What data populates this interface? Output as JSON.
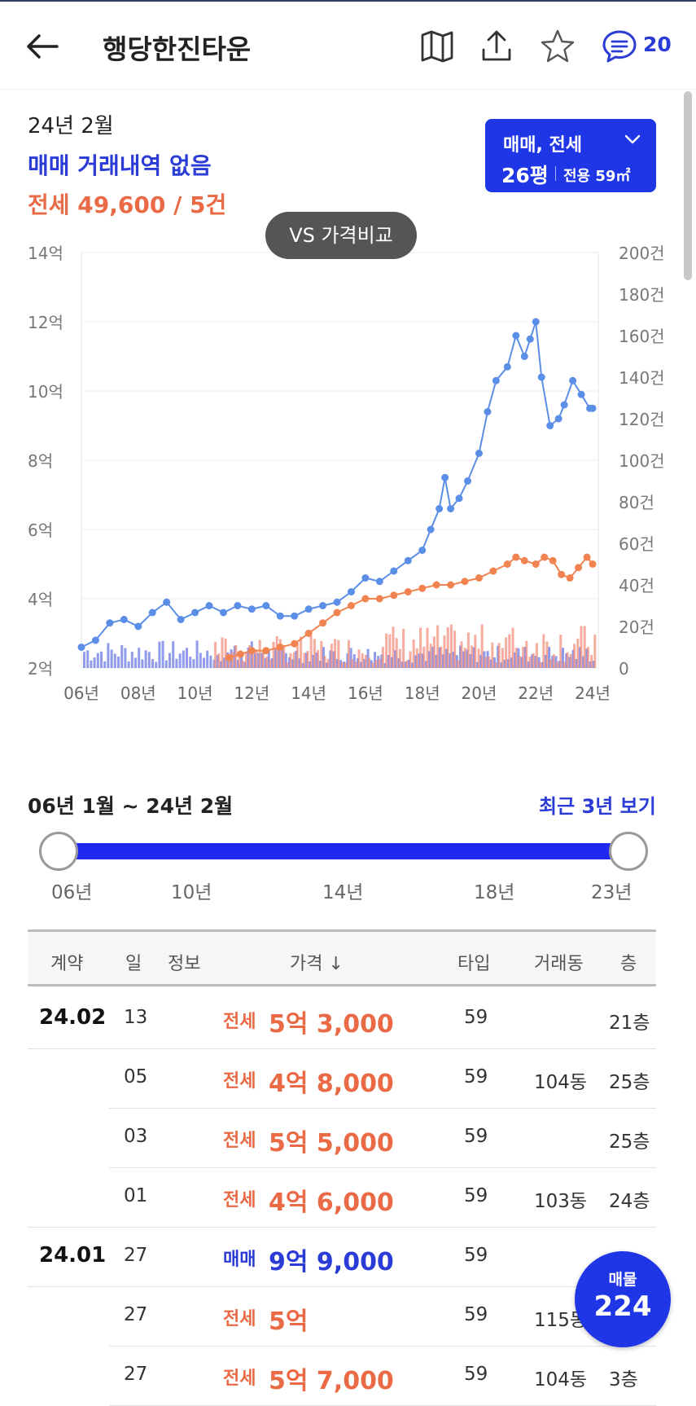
{
  "header": {
    "title": "행당한진타운",
    "comment_count": "20"
  },
  "summary": {
    "date": "24년 2월",
    "maemae": "매매 거래내역 없음",
    "jeonse": "전세 49,600 / 5건"
  },
  "type_selector": {
    "deal_types": "매매, 전세",
    "pyeong": "26평",
    "area": "전용 59㎡"
  },
  "compare_button": "VS 가격비교",
  "chart_data": {
    "type": "line",
    "x_ticks": [
      "06년",
      "08년",
      "10년",
      "12년",
      "14년",
      "16년",
      "18년",
      "20년",
      "22년",
      "24년"
    ],
    "y_left_ticks": [
      "14억",
      "12억",
      "10억",
      "8억",
      "6억",
      "4억",
      "2억"
    ],
    "y_right_ticks": [
      "200건",
      "180건",
      "160건",
      "140건",
      "120건",
      "100건",
      "80건",
      "60건",
      "40건",
      "20건",
      "0"
    ],
    "ylim_left": [
      2,
      14
    ],
    "ylim_right": [
      0,
      200
    ],
    "xlim": [
      2006,
      2024.2
    ],
    "grid": true,
    "series": [
      {
        "color": "#5b8ee6",
        "x": [
          2006.0,
          2006.5,
          2007.0,
          2007.5,
          2008.0,
          2008.5,
          2009.0,
          2009.5,
          2010.0,
          2010.5,
          2011.0,
          2011.5,
          2012.0,
          2012.5,
          2013.0,
          2013.5,
          2014.0,
          2014.5,
          2015.0,
          2015.5,
          2016.0,
          2016.5,
          2017.0,
          2017.5,
          2018.0,
          2018.3,
          2018.6,
          2018.8,
          2019.0,
          2019.3,
          2019.6,
          2020.0,
          2020.3,
          2020.6,
          2021.0,
          2021.3,
          2021.6,
          2021.8,
          2022.0,
          2022.2,
          2022.5,
          2022.8,
          2023.0,
          2023.3,
          2023.6,
          2023.9,
          2024.0
        ],
        "y": [
          2.6,
          2.8,
          3.3,
          3.4,
          3.2,
          3.6,
          3.9,
          3.4,
          3.6,
          3.8,
          3.6,
          3.8,
          3.7,
          3.8,
          3.5,
          3.5,
          3.7,
          3.8,
          3.9,
          4.2,
          4.6,
          4.5,
          4.8,
          5.1,
          5.4,
          6.0,
          6.6,
          7.5,
          6.6,
          6.9,
          7.4,
          8.2,
          9.4,
          10.3,
          10.7,
          11.6,
          11.0,
          11.5,
          12.0,
          10.4,
          9.0,
          9.2,
          9.6,
          10.3,
          9.9,
          9.5,
          9.5
        ]
      },
      {
        "color": "#f0834f",
        "x": [
          2011.2,
          2011.6,
          2012.0,
          2012.5,
          2013.0,
          2013.5,
          2014.0,
          2014.5,
          2015.0,
          2015.5,
          2016.0,
          2016.5,
          2017.0,
          2017.5,
          2018.0,
          2018.5,
          2019.0,
          2019.5,
          2020.0,
          2020.5,
          2021.0,
          2021.3,
          2021.6,
          2022.0,
          2022.3,
          2022.6,
          2022.9,
          2023.2,
          2023.5,
          2023.8,
          2024.0
        ],
        "y": [
          2.3,
          2.4,
          2.5,
          2.5,
          2.6,
          2.7,
          3.0,
          3.3,
          3.6,
          3.8,
          4.0,
          4.0,
          4.1,
          4.2,
          4.3,
          4.4,
          4.4,
          4.5,
          4.6,
          4.8,
          5.0,
          5.2,
          5.1,
          5.0,
          5.2,
          5.1,
          4.7,
          4.6,
          4.9,
          5.2,
          5.0
        ]
      }
    ]
  },
  "range": {
    "label": "06년 1월 ~ 24년 2월",
    "recent_link": "최근 3년 보기",
    "ticks": [
      "06년",
      "10년",
      "14년",
      "18년",
      "23년"
    ]
  },
  "table": {
    "headers": [
      "계약",
      "일",
      "정보",
      "가격 ↓",
      "타입",
      "거래동",
      "층"
    ],
    "rows": [
      {
        "ym": "24.02",
        "day": "13",
        "kind": "전세",
        "price": "5억 3,000",
        "type": "59",
        "dong": "",
        "floor": "21층",
        "color": "orange"
      },
      {
        "ym": "",
        "day": "05",
        "kind": "전세",
        "price": "4억 8,000",
        "type": "59",
        "dong": "104동",
        "floor": "25층",
        "color": "orange"
      },
      {
        "ym": "",
        "day": "03",
        "kind": "전세",
        "price": "5억 5,000",
        "type": "59",
        "dong": "",
        "floor": "25층",
        "color": "orange"
      },
      {
        "ym": "",
        "day": "01",
        "kind": "전세",
        "price": "4억 6,000",
        "type": "59",
        "dong": "103동",
        "floor": "24층",
        "color": "orange"
      },
      {
        "ym": "24.01",
        "day": "27",
        "kind": "매매",
        "price": "9억 9,000",
        "type": "59",
        "dong": "",
        "floor": "",
        "color": "blue"
      },
      {
        "ym": "",
        "day": "27",
        "kind": "전세",
        "price": "5억",
        "type": "59",
        "dong": "115동",
        "floor": "",
        "color": "orange"
      },
      {
        "ym": "",
        "day": "27",
        "kind": "전세",
        "price": "5억 7,000",
        "type": "59",
        "dong": "104동",
        "floor": "3층",
        "color": "orange"
      }
    ]
  },
  "fab": {
    "label": "매물",
    "count": "224"
  }
}
